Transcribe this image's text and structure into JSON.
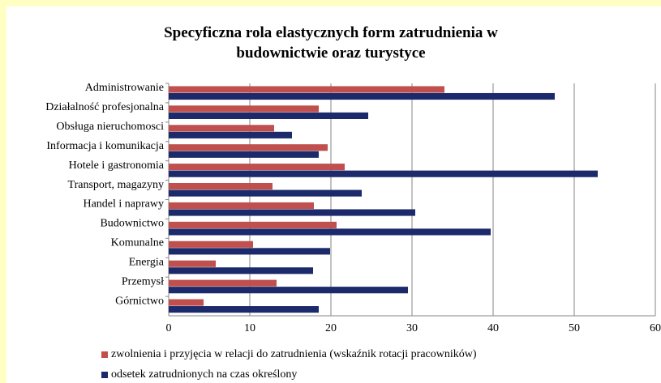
{
  "chart_data": {
    "type": "bar",
    "orientation": "horizontal",
    "title": "Specyficzna rola elastycznych form zatrudnienia w budownictwie oraz turystyce",
    "categories": [
      "Administrowanie",
      "Działalność profesjonalna",
      "Obsługa nieruchomosci",
      "Informacja i komunikacja",
      "Hotele i gastronomia",
      "Transport, magazyny",
      "Handel i naprawy",
      "Budownictwo",
      "Komunalne",
      "Energia",
      "Przemysł",
      "Górnictwo"
    ],
    "series": [
      {
        "name": "zwolnienia i przyjęcia w relacji do zatrudnienia (wskaźnik rotacji pracowników)",
        "color": "#c0504d",
        "values": [
          34,
          18.5,
          13,
          19.6,
          21.7,
          12.8,
          17.9,
          20.7,
          10.4,
          5.8,
          13.3,
          4.3
        ]
      },
      {
        "name": "odsetek zatrudnionych na czas określony",
        "color": "#1c2a6b",
        "values": [
          47.6,
          24.6,
          15.2,
          18.5,
          52.9,
          23.8,
          30.4,
          39.7,
          19.9,
          17.8,
          29.5,
          18.5
        ]
      }
    ],
    "xlim": [
      0,
      60
    ],
    "xticks": [
      0,
      10,
      20,
      30,
      40,
      50,
      60
    ],
    "grid": true
  }
}
